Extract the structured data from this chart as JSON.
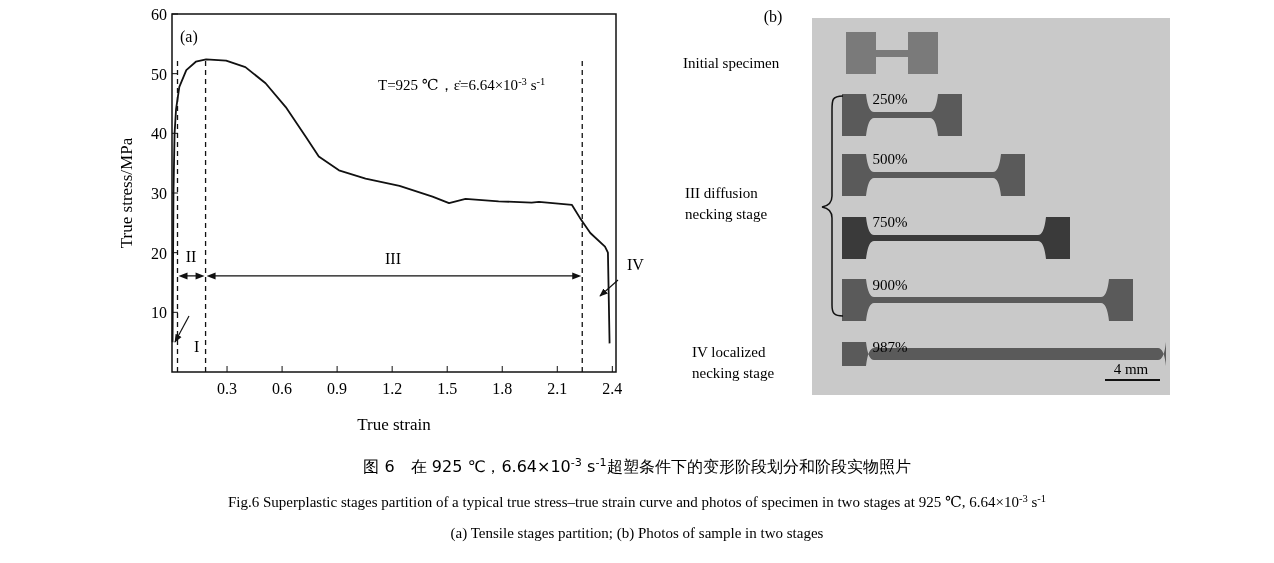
{
  "chart_data": {
    "type": "line",
    "xlabel": "True strain",
    "ylabel": "True stress/MPa",
    "xlim": [
      0,
      2.42
    ],
    "ylim": [
      0,
      60
    ],
    "xticks": [
      0.3,
      0.6,
      0.9,
      1.2,
      1.5,
      1.8,
      2.1,
      2.4
    ],
    "yticks": [
      10,
      20,
      30,
      40,
      50,
      60
    ],
    "grid": false,
    "series": [
      {
        "color": "#111111",
        "x": [
          0.003,
          0.008,
          0.014,
          0.022,
          0.04,
          0.078,
          0.13,
          0.186,
          0.295,
          0.4,
          0.51,
          0.62,
          0.73,
          0.8,
          0.91,
          1.055,
          1.24,
          1.42,
          1.51,
          1.6,
          1.78,
          1.96,
          2.0,
          2.18,
          2.23,
          2.28,
          2.36,
          2.376,
          2.385
        ],
        "values": [
          5,
          30,
          40,
          44,
          47.8,
          50.6,
          52,
          52.4,
          52.2,
          51.1,
          48.4,
          44.4,
          39.4,
          36.1,
          33.8,
          32.4,
          31.2,
          29.4,
          28.3,
          29,
          28.6,
          28.4,
          28.5,
          28,
          25.5,
          23.3,
          21,
          20,
          4.8
        ]
      }
    ],
    "ref_lines": [
      {
        "axis": "x",
        "value": 0.03,
        "line_style": "dashed"
      },
      {
        "axis": "x",
        "value": 0.183,
        "line_style": "dashed"
      },
      {
        "axis": "x",
        "value": 2.236,
        "line_style": "dashed"
      }
    ],
    "annotations": [
      "(a)",
      "T=925 ℃，ε̇=6.64×10$^{-3}$ s$^{-1}$",
      "I",
      "II",
      "III",
      "IV",
      "(b)",
      "Initial specimen",
      "250%",
      "500%",
      "750%",
      "900%",
      "III diffusion\nnecking stage",
      "IV localized\nnecking stage",
      "987%",
      "4 mm",
      "图 6　在 925 ℃，6.64×10$^{-3}$ s$^{-1}$超塑条件下的变形阶段划分和阶段实物照片",
      "Fig.6   Superplastic stages partition of a typical true stress–true strain curve and photos of specimen in two stages at 925 ℃, 6.64×10$^{-3}$ s$^{-1}$",
      "(a) Tensile stages partition; (b) Photos of sample in two stages"
    ]
  }
}
